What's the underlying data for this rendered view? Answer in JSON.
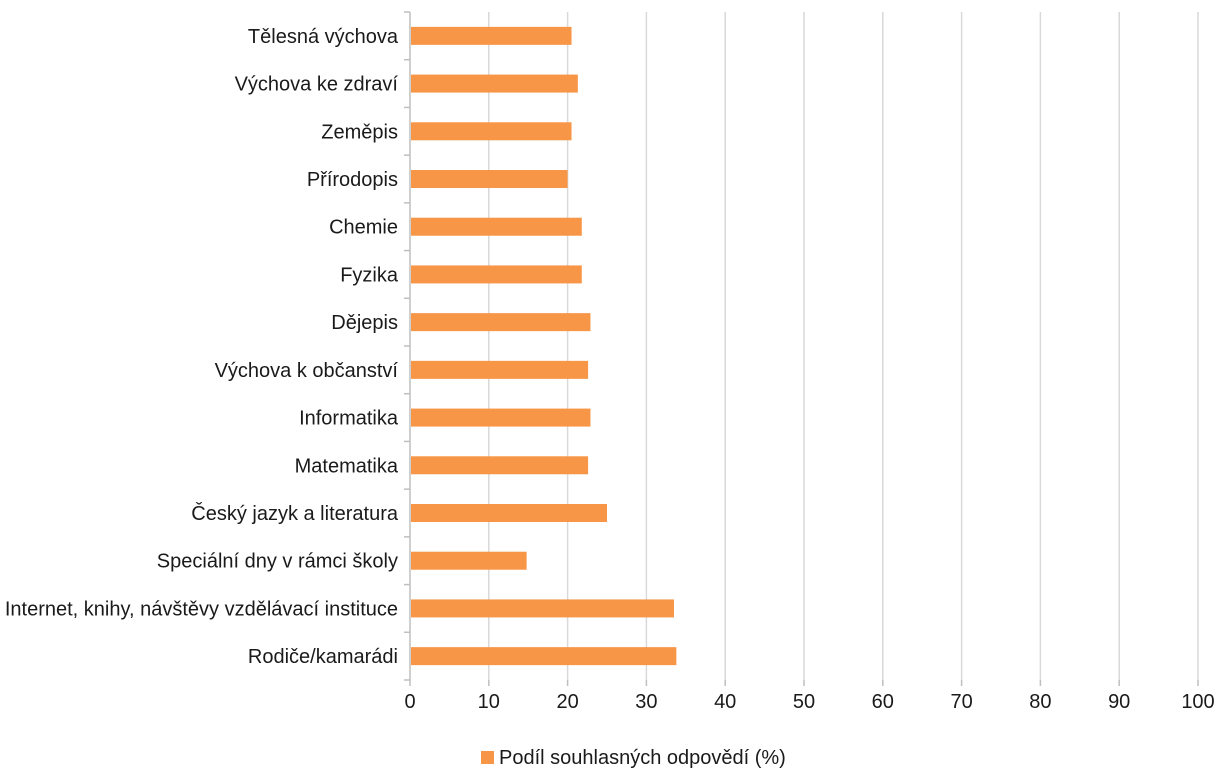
{
  "chart_data": {
    "type": "bar",
    "orientation": "horizontal",
    "categories": [
      "Tělesná výchova",
      "Výchova ke zdraví",
      "Zeměpis",
      "Přírodopis",
      "Chemie",
      "Fyzika",
      "Dějepis",
      "Výchova k občanství",
      "Informatika",
      "Matematika",
      "Český jazyk a literatura",
      "Speciální dny v rámci školy",
      "Internet, knihy, návštěvy vzdělávací instituce",
      "Rodiče/kamarádi"
    ],
    "series": [
      {
        "name": "Podíl souhlasných odpovědí (%)",
        "color": "#f79646",
        "values": [
          20.5,
          21.3,
          20.5,
          20.0,
          21.8,
          21.8,
          22.9,
          22.6,
          22.9,
          22.6,
          25.0,
          14.8,
          33.5,
          33.8
        ]
      }
    ],
    "xlim": [
      0,
      100
    ],
    "xticks": [
      "0",
      "10",
      "20",
      "30",
      "40",
      "50",
      "60",
      "70",
      "80",
      "90",
      "100"
    ],
    "grid": true,
    "legend_position": "bottom",
    "colors": {
      "bar": "#f79646",
      "grid": "#d9d9d9",
      "axis": "#bfbfbf"
    }
  }
}
